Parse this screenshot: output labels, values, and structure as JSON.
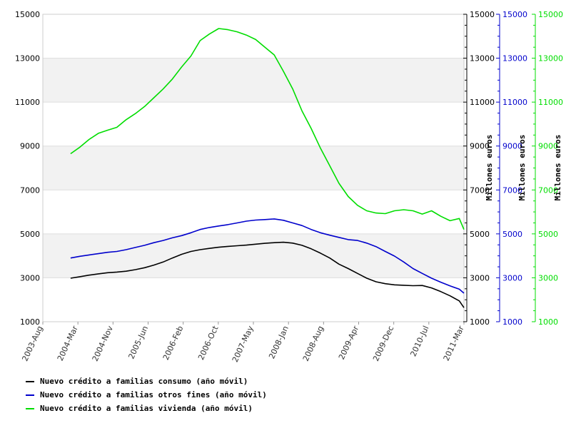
{
  "chart_data": {
    "type": "line",
    "x_start": "2003-08",
    "x_end": "2011-03",
    "x_tick_labels": [
      "2003-Aug",
      "2004-Mar",
      "2004-Nov",
      "2005-Jun",
      "2006-Feb",
      "2006-Oct",
      "2007-May",
      "2008-Jan",
      "2008-Aug",
      "2009-Apr",
      "2009-Dec",
      "2010-Jul",
      "2011-Mar"
    ],
    "ylim": [
      1000,
      15000
    ],
    "y_ticks": [
      1000,
      3000,
      5000,
      7000,
      9000,
      11000,
      13000,
      15000
    ],
    "left_y_ticks": [
      "1000",
      "3000",
      "5000",
      "7000",
      "9000",
      "11000",
      "13000",
      "15000"
    ],
    "right_axes": [
      {
        "ylabel": "Millones euros",
        "color": "#000000",
        "ticks": [
          "1000",
          "3000",
          "5000",
          "7000",
          "9000",
          "11000",
          "13000",
          "15000"
        ]
      },
      {
        "ylabel": "Millones euros",
        "color": "#0000cc",
        "ticks": [
          "1000",
          "3000",
          "5000",
          "7000",
          "9000",
          "11000",
          "13000",
          "15000"
        ]
      },
      {
        "ylabel": "Millones euros",
        "color": "#00dd00",
        "ticks": [
          "1000",
          "3000",
          "5000",
          "7000",
          "9000",
          "11000",
          "13000",
          "15000"
        ]
      }
    ],
    "series": [
      {
        "name": "Nuevo crédito a familias consumo (año móvil)",
        "color": "#000000",
        "points": [
          [
            "2004-02",
            2980
          ],
          [
            "2004-04",
            3050
          ],
          [
            "2004-06",
            3120
          ],
          [
            "2004-08",
            3180
          ],
          [
            "2004-10",
            3230
          ],
          [
            "2004-12",
            3260
          ],
          [
            "2005-02",
            3300
          ],
          [
            "2005-04",
            3370
          ],
          [
            "2005-06",
            3460
          ],
          [
            "2005-08",
            3580
          ],
          [
            "2005-10",
            3720
          ],
          [
            "2005-12",
            3900
          ],
          [
            "2006-02",
            4070
          ],
          [
            "2006-04",
            4200
          ],
          [
            "2006-06",
            4280
          ],
          [
            "2006-08",
            4340
          ],
          [
            "2006-10",
            4390
          ],
          [
            "2006-12",
            4430
          ],
          [
            "2007-02",
            4460
          ],
          [
            "2007-04",
            4490
          ],
          [
            "2007-06",
            4530
          ],
          [
            "2007-08",
            4570
          ],
          [
            "2007-10",
            4600
          ],
          [
            "2007-12",
            4620
          ],
          [
            "2008-02",
            4580
          ],
          [
            "2008-04",
            4480
          ],
          [
            "2008-06",
            4320
          ],
          [
            "2008-08",
            4120
          ],
          [
            "2008-10",
            3900
          ],
          [
            "2008-12",
            3620
          ],
          [
            "2009-02",
            3420
          ],
          [
            "2009-04",
            3200
          ],
          [
            "2009-06",
            2980
          ],
          [
            "2009-08",
            2820
          ],
          [
            "2009-10",
            2730
          ],
          [
            "2009-12",
            2680
          ],
          [
            "2010-02",
            2660
          ],
          [
            "2010-04",
            2640
          ],
          [
            "2010-06",
            2650
          ],
          [
            "2010-08",
            2540
          ],
          [
            "2010-10",
            2370
          ],
          [
            "2010-12",
            2180
          ],
          [
            "2011-02",
            1950
          ],
          [
            "2011-03",
            1640
          ]
        ]
      },
      {
        "name": "Nuevo crédito a familias otros fines (año móvil)",
        "color": "#0000cc",
        "points": [
          [
            "2004-02",
            3900
          ],
          [
            "2004-04",
            3980
          ],
          [
            "2004-06",
            4040
          ],
          [
            "2004-08",
            4100
          ],
          [
            "2004-10",
            4160
          ],
          [
            "2004-12",
            4200
          ],
          [
            "2005-02",
            4280
          ],
          [
            "2005-04",
            4380
          ],
          [
            "2005-06",
            4480
          ],
          [
            "2005-08",
            4600
          ],
          [
            "2005-10",
            4700
          ],
          [
            "2005-12",
            4820
          ],
          [
            "2006-02",
            4920
          ],
          [
            "2006-04",
            5050
          ],
          [
            "2006-06",
            5200
          ],
          [
            "2006-08",
            5290
          ],
          [
            "2006-10",
            5360
          ],
          [
            "2006-12",
            5420
          ],
          [
            "2007-02",
            5500
          ],
          [
            "2007-04",
            5580
          ],
          [
            "2007-06",
            5630
          ],
          [
            "2007-08",
            5650
          ],
          [
            "2007-10",
            5680
          ],
          [
            "2007-12",
            5620
          ],
          [
            "2008-02",
            5500
          ],
          [
            "2008-04",
            5380
          ],
          [
            "2008-06",
            5200
          ],
          [
            "2008-08",
            5050
          ],
          [
            "2008-10",
            4940
          ],
          [
            "2008-12",
            4840
          ],
          [
            "2009-02",
            4740
          ],
          [
            "2009-04",
            4700
          ],
          [
            "2009-06",
            4580
          ],
          [
            "2009-08",
            4420
          ],
          [
            "2009-10",
            4200
          ],
          [
            "2009-12",
            3990
          ],
          [
            "2010-02",
            3720
          ],
          [
            "2010-04",
            3420
          ],
          [
            "2010-06",
            3200
          ],
          [
            "2010-08",
            2980
          ],
          [
            "2010-10",
            2800
          ],
          [
            "2010-12",
            2630
          ],
          [
            "2011-02",
            2480
          ],
          [
            "2011-03",
            2300
          ]
        ]
      },
      {
        "name": "Nuevo crédito a familias vivienda (año móvil)",
        "color": "#00dd00",
        "points": [
          [
            "2004-02",
            8650
          ],
          [
            "2004-04",
            8950
          ],
          [
            "2004-06",
            9300
          ],
          [
            "2004-08",
            9580
          ],
          [
            "2004-10",
            9720
          ],
          [
            "2004-12",
            9850
          ],
          [
            "2005-02",
            10200
          ],
          [
            "2005-04",
            10480
          ],
          [
            "2005-06",
            10800
          ],
          [
            "2005-08",
            11200
          ],
          [
            "2005-10",
            11600
          ],
          [
            "2005-12",
            12050
          ],
          [
            "2006-02",
            12600
          ],
          [
            "2006-04",
            13100
          ],
          [
            "2006-06",
            13800
          ],
          [
            "2006-08",
            14100
          ],
          [
            "2006-10",
            14350
          ],
          [
            "2006-12",
            14300
          ],
          [
            "2007-02",
            14200
          ],
          [
            "2007-04",
            14050
          ],
          [
            "2007-06",
            13850
          ],
          [
            "2007-08",
            13500
          ],
          [
            "2007-10",
            13150
          ],
          [
            "2007-12",
            12400
          ],
          [
            "2008-02",
            11600
          ],
          [
            "2008-04",
            10600
          ],
          [
            "2008-06",
            9800
          ],
          [
            "2008-08",
            8900
          ],
          [
            "2008-10",
            8100
          ],
          [
            "2008-12",
            7300
          ],
          [
            "2009-02",
            6700
          ],
          [
            "2009-04",
            6300
          ],
          [
            "2009-06",
            6050
          ],
          [
            "2009-08",
            5950
          ],
          [
            "2009-10",
            5920
          ],
          [
            "2009-12",
            6050
          ],
          [
            "2010-02",
            6100
          ],
          [
            "2010-04",
            6050
          ],
          [
            "2010-06",
            5900
          ],
          [
            "2010-08",
            6050
          ],
          [
            "2010-10",
            5800
          ],
          [
            "2010-12",
            5600
          ],
          [
            "2011-02",
            5700
          ],
          [
            "2011-03",
            5200
          ]
        ]
      }
    ],
    "grid": true,
    "legend_position": "bottom-left"
  }
}
